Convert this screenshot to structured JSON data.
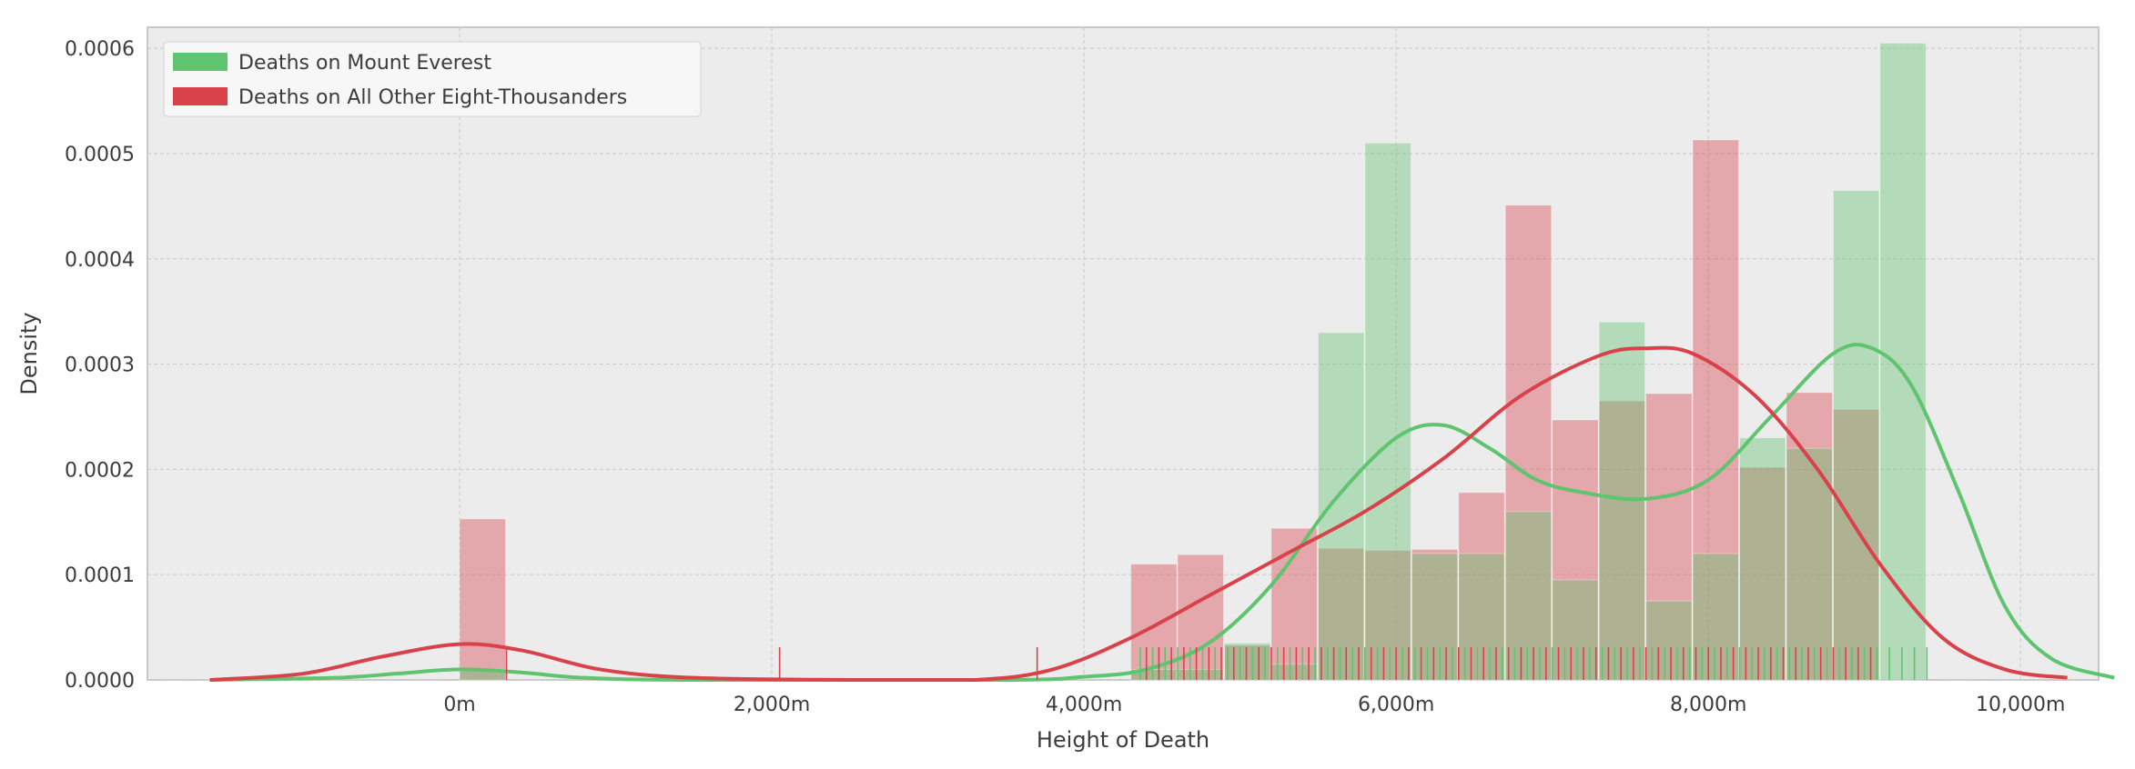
{
  "chart_data": {
    "type": "histogram",
    "title": "",
    "xlabel": "Height of Death",
    "ylabel": "Density",
    "xlim": [
      -2000,
      10500
    ],
    "ylim": [
      0,
      0.00062
    ],
    "xticks": [
      0,
      2000,
      4000,
      6000,
      8000,
      10000
    ],
    "xtick_labels": [
      "0m",
      "2,000m",
      "4,000m",
      "6,000m",
      "8,000m",
      "10,000m"
    ],
    "yticks": [
      0,
      0.0001,
      0.0002,
      0.0003,
      0.0004,
      0.0005,
      0.0006
    ],
    "ytick_labels": [
      "0.0000",
      "0.0001",
      "0.0002",
      "0.0003",
      "0.0004",
      "0.0005",
      "0.0006"
    ],
    "grid": true,
    "legend_position": "top-left",
    "background": "#ececec",
    "series": [
      {
        "name": "Deaths on Mount Everest",
        "color": "#5fc46f",
        "bars": [
          {
            "x0": 0,
            "x1": 300,
            "value": 1e-05
          },
          {
            "x0": 4300,
            "x1": 4600,
            "value": 1e-05
          },
          {
            "x0": 4600,
            "x1": 4900,
            "value": 1e-05
          },
          {
            "x0": 4900,
            "x1": 5200,
            "value": 3.5e-05
          },
          {
            "x0": 5200,
            "x1": 5500,
            "value": 1.5e-05
          },
          {
            "x0": 5500,
            "x1": 5800,
            "value": 0.00033
          },
          {
            "x0": 5800,
            "x1": 6100,
            "value": 0.00051
          },
          {
            "x0": 6100,
            "x1": 6400,
            "value": 0.00012
          },
          {
            "x0": 6400,
            "x1": 6700,
            "value": 0.00012
          },
          {
            "x0": 6700,
            "x1": 7000,
            "value": 0.00016
          },
          {
            "x0": 7000,
            "x1": 7300,
            "value": 9.5e-05
          },
          {
            "x0": 7300,
            "x1": 7600,
            "value": 0.00034
          },
          {
            "x0": 7600,
            "x1": 7900,
            "value": 7.5e-05
          },
          {
            "x0": 7900,
            "x1": 8200,
            "value": 0.00012
          },
          {
            "x0": 8200,
            "x1": 8500,
            "value": 0.00023
          },
          {
            "x0": 8500,
            "x1": 8800,
            "value": 0.00022
          },
          {
            "x0": 8800,
            "x1": 9100,
            "value": 0.000465
          },
          {
            "x0": 9100,
            "x1": 9400,
            "value": 0.000605
          }
        ],
        "kde": [
          [
            -1600,
            0
          ],
          [
            -800,
            2e-06
          ],
          [
            -400,
            6e-06
          ],
          [
            0,
            1e-05
          ],
          [
            400,
            7e-06
          ],
          [
            800,
            2e-06
          ],
          [
            1500,
            0
          ],
          [
            3500,
            0
          ],
          [
            4000,
            3e-06
          ],
          [
            4400,
            1e-05
          ],
          [
            4800,
            3.5e-05
          ],
          [
            5200,
            9e-05
          ],
          [
            5600,
            0.00017
          ],
          [
            6000,
            0.00023
          ],
          [
            6300,
            0.000242
          ],
          [
            6600,
            0.00022
          ],
          [
            6900,
            0.00019
          ],
          [
            7200,
            0.000178
          ],
          [
            7600,
            0.000172
          ],
          [
            8000,
            0.00019
          ],
          [
            8400,
            0.00025
          ],
          [
            8800,
            0.00031
          ],
          [
            9050,
            0.000315
          ],
          [
            9300,
            0.00028
          ],
          [
            9600,
            0.00018
          ],
          [
            9900,
            7e-05
          ],
          [
            10200,
            2e-05
          ],
          [
            10600,
            2e-06
          ]
        ],
        "rug": [
          4360,
          4440,
          4520,
          4600,
          4680,
          4760,
          4840,
          4920,
          5000,
          5080,
          5160,
          5240,
          5320,
          5400,
          5480,
          5560,
          5640,
          5720,
          5800,
          5880,
          5960,
          6040,
          6120,
          6200,
          6280,
          6360,
          6440,
          6520,
          6600,
          6680,
          6760,
          6840,
          6920,
          7000,
          7080,
          7160,
          7240,
          7320,
          7400,
          7480,
          7560,
          7640,
          7720,
          7800,
          7880,
          7960,
          8040,
          8120,
          8200,
          8280,
          8360,
          8440,
          8520,
          8600,
          8680,
          8760,
          8840,
          8920,
          9000,
          9080,
          9160,
          9240,
          9320,
          9400
        ]
      },
      {
        "name": "Deaths on All Other Eight-Thousanders",
        "color": "#d9424a",
        "bars": [
          {
            "x0": 0,
            "x1": 300,
            "value": 0.000153
          },
          {
            "x0": 4300,
            "x1": 4600,
            "value": 0.00011
          },
          {
            "x0": 4600,
            "x1": 4900,
            "value": 0.000119
          },
          {
            "x0": 4900,
            "x1": 5200,
            "value": 3.3e-05
          },
          {
            "x0": 5200,
            "x1": 5500,
            "value": 0.000144
          },
          {
            "x0": 5500,
            "x1": 5800,
            "value": 0.000125
          },
          {
            "x0": 5800,
            "x1": 6100,
            "value": 0.000123
          },
          {
            "x0": 6100,
            "x1": 6400,
            "value": 0.000124
          },
          {
            "x0": 6400,
            "x1": 6700,
            "value": 0.000178
          },
          {
            "x0": 6700,
            "x1": 7000,
            "value": 0.000451
          },
          {
            "x0": 7000,
            "x1": 7300,
            "value": 0.000247
          },
          {
            "x0": 7300,
            "x1": 7600,
            "value": 0.000265
          },
          {
            "x0": 7600,
            "x1": 7900,
            "value": 0.000272
          },
          {
            "x0": 7900,
            "x1": 8200,
            "value": 0.000513
          },
          {
            "x0": 8200,
            "x1": 8500,
            "value": 0.000202
          },
          {
            "x0": 8500,
            "x1": 8800,
            "value": 0.000273
          },
          {
            "x0": 8800,
            "x1": 9100,
            "value": 0.000257
          }
        ],
        "kde": [
          [
            -1600,
            0
          ],
          [
            -1000,
            6e-06
          ],
          [
            -500,
            2.2e-05
          ],
          [
            0,
            3.4e-05
          ],
          [
            400,
            2.8e-05
          ],
          [
            900,
            1e-05
          ],
          [
            1500,
            2e-06
          ],
          [
            2500,
            0
          ],
          [
            3300,
            0
          ],
          [
            3800,
            1e-05
          ],
          [
            4300,
            4e-05
          ],
          [
            4800,
            8e-05
          ],
          [
            5300,
            0.00012
          ],
          [
            5800,
            0.00016
          ],
          [
            6300,
            0.00021
          ],
          [
            6800,
            0.00027
          ],
          [
            7300,
            0.000308
          ],
          [
            7600,
            0.000315
          ],
          [
            7900,
            0.00031
          ],
          [
            8300,
            0.00027
          ],
          [
            8700,
            0.0002
          ],
          [
            9100,
            0.00011
          ],
          [
            9500,
            4e-05
          ],
          [
            9900,
            1e-05
          ],
          [
            10300,
            2e-06
          ]
        ],
        "rug": [
          300,
          2050,
          3700,
          4400,
          4480,
          4560,
          4640,
          4720,
          4800,
          4880,
          4960,
          5040,
          5120,
          5200,
          5280,
          5360,
          5440,
          5520,
          5600,
          5680,
          5760,
          5840,
          5920,
          6000,
          6080,
          6160,
          6240,
          6320,
          6400,
          6480,
          6560,
          6640,
          6720,
          6800,
          6880,
          6960,
          7040,
          7120,
          7200,
          7280,
          7360,
          7440,
          7520,
          7600,
          7680,
          7760,
          7840,
          7920,
          8000,
          8080,
          8160,
          8240,
          8320,
          8400,
          8480,
          8560,
          8640,
          8720,
          8800,
          8880,
          8960,
          9040
        ]
      }
    ]
  }
}
